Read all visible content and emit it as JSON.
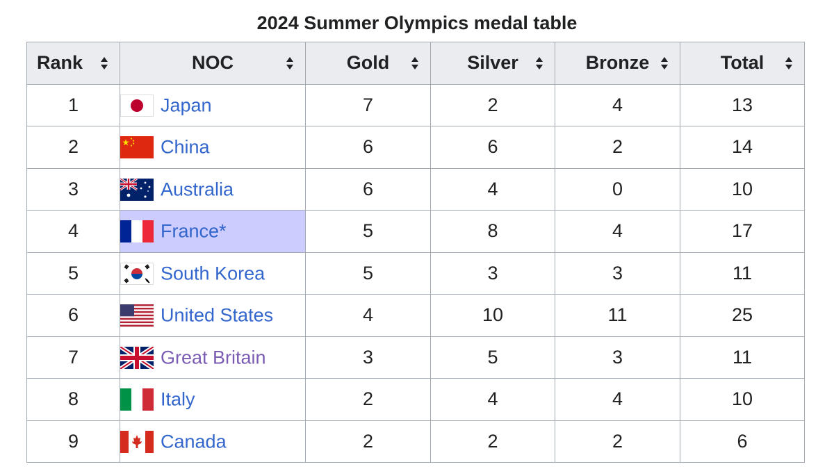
{
  "title": "2024 Summer Olympics medal table",
  "headers": {
    "rank": "Rank",
    "noc": "NOC",
    "gold": "Gold",
    "silver": "Silver",
    "bronze": "Bronze",
    "total": "Total"
  },
  "colors": {
    "gold": "#f7d000",
    "silver": "#c8c8c8",
    "bronze": "#cc9966",
    "header": "#eaecf0",
    "host_highlight": "#ccccff",
    "link": "#3366cc",
    "visited_link": "#795cb2"
  },
  "rows": [
    {
      "rank": "1",
      "country": "Japan",
      "flag": "japan-flag-icon",
      "gold": "7",
      "silver": "2",
      "bronze": "4",
      "total": "13"
    },
    {
      "rank": "2",
      "country": "China",
      "flag": "china-flag-icon",
      "gold": "6",
      "silver": "6",
      "bronze": "2",
      "total": "14"
    },
    {
      "rank": "3",
      "country": "Australia",
      "flag": "australia-flag-icon",
      "gold": "6",
      "silver": "4",
      "bronze": "0",
      "total": "10"
    },
    {
      "rank": "4",
      "country": "France",
      "host_marker": "*",
      "flag": "france-flag-icon",
      "gold": "5",
      "silver": "8",
      "bronze": "4",
      "total": "17"
    },
    {
      "rank": "5",
      "country": "South Korea",
      "flag": "south-korea-flag-icon",
      "gold": "5",
      "silver": "3",
      "bronze": "3",
      "total": "11"
    },
    {
      "rank": "6",
      "country": "United States",
      "flag": "united-states-flag-icon",
      "gold": "4",
      "silver": "10",
      "bronze": "11",
      "total": "25"
    },
    {
      "rank": "7",
      "country": "Great Britain",
      "flag": "great-britain-flag-icon",
      "gold": "3",
      "silver": "5",
      "bronze": "3",
      "total": "11"
    },
    {
      "rank": "8",
      "country": "Italy",
      "flag": "italy-flag-icon",
      "gold": "2",
      "silver": "4",
      "bronze": "4",
      "total": "10"
    },
    {
      "rank": "9",
      "country": "Canada",
      "flag": "canada-flag-icon",
      "gold": "2",
      "silver": "2",
      "bronze": "2",
      "total": "6"
    }
  ]
}
